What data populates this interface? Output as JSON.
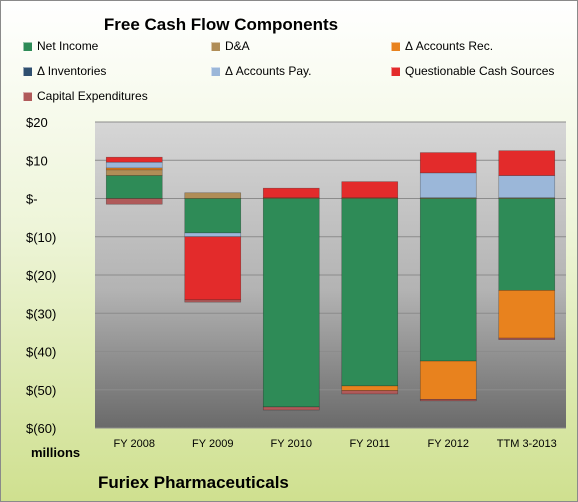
{
  "chart_data": {
    "type": "bar",
    "stacked": true,
    "title": "Free Cash Flow Components",
    "ylabel": "millions",
    "footer": "Furiex Pharmaceuticals",
    "categories": [
      "FY 2008",
      "FY 2009",
      "FY 2010",
      "FY 2011",
      "FY 2012",
      "TTM 3-2013"
    ],
    "ylim": [
      -60,
      20
    ],
    "yticks": [
      {
        "value": 20,
        "label": "$20"
      },
      {
        "value": 10,
        "label": "$10"
      },
      {
        "value": 0,
        "label": "$-"
      },
      {
        "value": -10,
        "label": "$(10)"
      },
      {
        "value": -20,
        "label": "$(20)"
      },
      {
        "value": -30,
        "label": "$(30)"
      },
      {
        "value": -40,
        "label": "$(40)"
      },
      {
        "value": -50,
        "label": "$(50)"
      },
      {
        "value": -60,
        "label": "$(60)"
      }
    ],
    "grid": true,
    "legend_position": "top",
    "series": [
      {
        "name": "Net Income",
        "color": "#2e8b57",
        "values": [
          6,
          -9,
          -54.5,
          -49,
          -42.5,
          -24
        ]
      },
      {
        "name": "D&A",
        "color": "#b08d57",
        "values": [
          1.5,
          1.5,
          0.2,
          0.2,
          0.2,
          0.2
        ]
      },
      {
        "name": "Δ Accounts Rec.",
        "color": "#e8821e",
        "values": [
          0.5,
          0,
          0,
          -1.2,
          -10,
          -12.5
        ]
      },
      {
        "name": "Δ Inventories",
        "color": "#2f4f6f",
        "values": [
          0,
          0,
          0,
          0,
          0,
          0
        ]
      },
      {
        "name": "Δ Accounts Pay.",
        "color": "#9bb7d9",
        "values": [
          1.5,
          -1,
          0,
          0,
          6.5,
          5.8
        ]
      },
      {
        "name": "Questionable Cash Sources",
        "color": "#e32b2b",
        "values": [
          1.3,
          -16.5,
          2.5,
          4.2,
          5.3,
          6.5
        ]
      },
      {
        "name": "Capital Expenditures",
        "color": "#b05a5a",
        "values": [
          -1.5,
          -0.6,
          -0.8,
          -0.9,
          -0.4,
          -0.4
        ]
      }
    ]
  }
}
